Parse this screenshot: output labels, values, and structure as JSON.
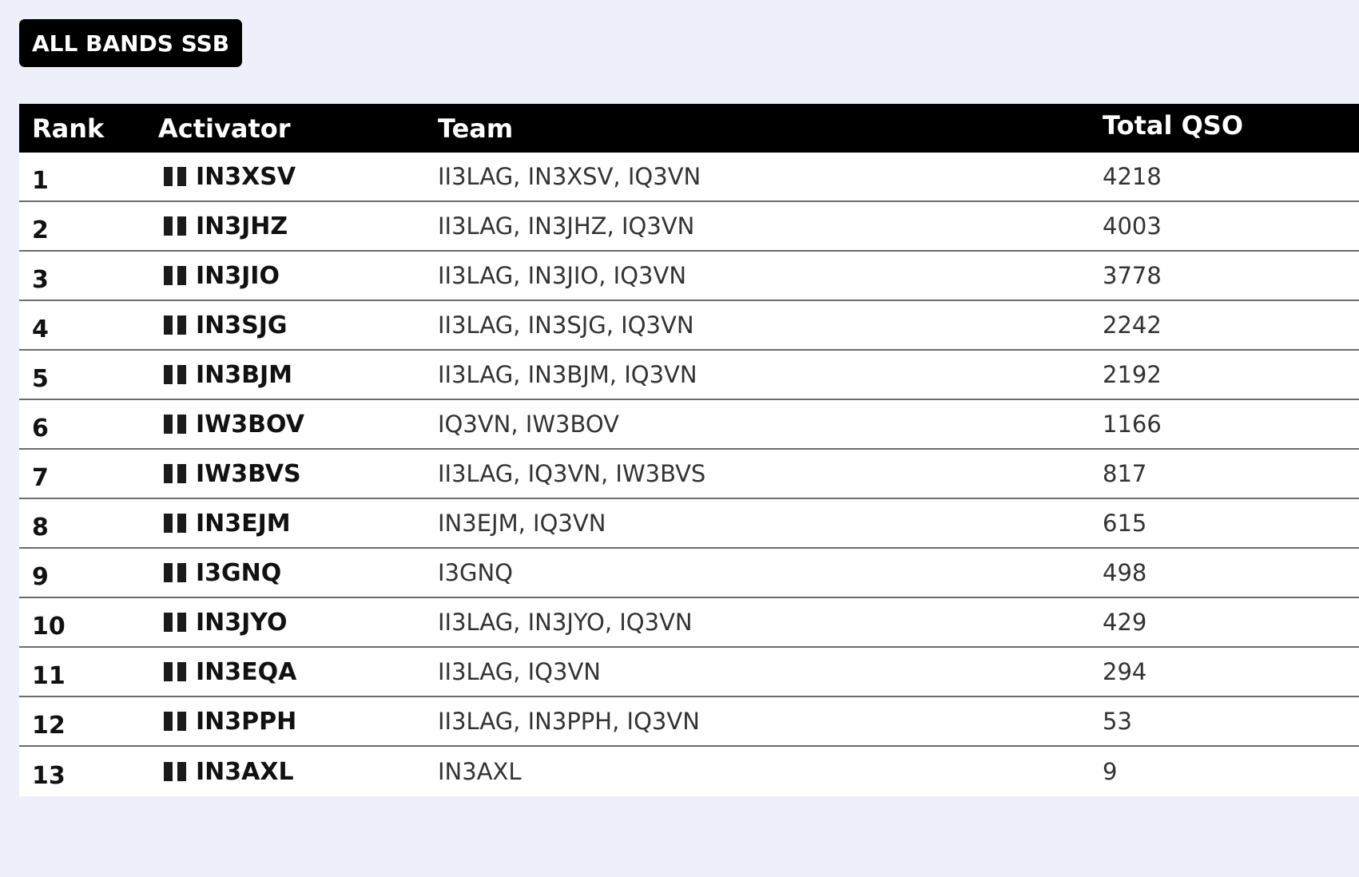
{
  "title": "ALL BANDS SSB",
  "columns": {
    "rank": "Rank",
    "activator": "Activator",
    "team": "Team",
    "total_qso": "Total QSO"
  },
  "rows": [
    {
      "rank": "1",
      "activator": "IN3XSV",
      "team": "II3LAG, IN3XSV, IQ3VN",
      "total_qso": "4218"
    },
    {
      "rank": "2",
      "activator": "IN3JHZ",
      "team": "II3LAG, IN3JHZ, IQ3VN",
      "total_qso": "4003"
    },
    {
      "rank": "3",
      "activator": "IN3JIO",
      "team": "II3LAG, IN3JIO, IQ3VN",
      "total_qso": "3778"
    },
    {
      "rank": "4",
      "activator": "IN3SJG",
      "team": "II3LAG, IN3SJG, IQ3VN",
      "total_qso": "2242"
    },
    {
      "rank": "5",
      "activator": "IN3BJM",
      "team": "II3LAG, IN3BJM, IQ3VN",
      "total_qso": "2192"
    },
    {
      "rank": "6",
      "activator": "IW3BOV",
      "team": "IQ3VN, IW3BOV",
      "total_qso": "1166"
    },
    {
      "rank": "7",
      "activator": "IW3BVS",
      "team": "II3LAG, IQ3VN, IW3BVS",
      "total_qso": "817"
    },
    {
      "rank": "8",
      "activator": "IN3EJM",
      "team": "IN3EJM, IQ3VN",
      "total_qso": "615"
    },
    {
      "rank": "9",
      "activator": "I3GNQ",
      "team": "I3GNQ",
      "total_qso": "498"
    },
    {
      "rank": "10",
      "activator": "IN3JYO",
      "team": "II3LAG, IN3JYO, IQ3VN",
      "total_qso": "429"
    },
    {
      "rank": "11",
      "activator": "IN3EQA",
      "team": "II3LAG, IQ3VN",
      "total_qso": "294"
    },
    {
      "rank": "12",
      "activator": "IN3PPH",
      "team": "II3LAG, IN3PPH, IQ3VN",
      "total_qso": "53"
    },
    {
      "rank": "13",
      "activator": "IN3AXL",
      "team": "IN3AXL",
      "total_qso": "9"
    }
  ],
  "icons": {
    "activator_flag": "flag-icon"
  }
}
